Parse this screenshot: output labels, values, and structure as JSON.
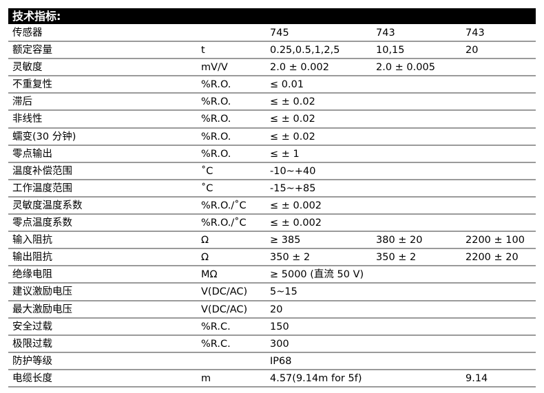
{
  "title": "技术指标:",
  "rows": [
    [
      "传感器",
      "",
      "745",
      "743",
      "743"
    ],
    [
      "额定容量",
      "t",
      "0.25,0.5,1,2,5",
      "10,15",
      "20"
    ],
    [
      "灵敏度",
      "mV/V",
      "2.0 ± 0.002",
      "2.0 ± 0.005",
      ""
    ],
    [
      "不重复性",
      "%R.O.",
      "≤ 0.01",
      "",
      ""
    ],
    [
      "滞后",
      "%R.O.",
      "≤ ± 0.02",
      "",
      ""
    ],
    [
      "非线性",
      "%R.O.",
      "≤ ± 0.02",
      "",
      ""
    ],
    [
      "蠕变(30 分钟)",
      "%R.O.",
      "≤ ± 0.02",
      "",
      ""
    ],
    [
      "零点输出",
      "%R.O.",
      "≤ ± 1",
      "",
      ""
    ],
    [
      "温度补偿范围",
      "˚C",
      "-10~+40",
      "",
      ""
    ],
    [
      "工作温度范围",
      "˚C",
      "-15~+85",
      "",
      ""
    ],
    [
      "灵敏度温度系数",
      "%R.O./˚C",
      "≤ ± 0.002",
      "",
      ""
    ],
    [
      "零点温度系数",
      "%R.O./˚C",
      "≤ ± 0.002",
      "",
      ""
    ],
    [
      "输入阻抗",
      "Ω",
      "≥ 385",
      "380 ± 20",
      "2200 ± 100"
    ],
    [
      "输出阻抗",
      "Ω",
      "350 ± 2",
      "350 ± 2",
      "2200 ± 20"
    ],
    [
      "绝缘电阻",
      "MΩ",
      "≥ 5000 (直流 50 V)",
      "",
      ""
    ],
    [
      "建议激励电压",
      "V(DC/AC)",
      "5~15",
      "",
      ""
    ],
    [
      "最大激励电压",
      "V(DC/AC)",
      "20",
      "",
      ""
    ],
    [
      "安全过载",
      "%R.C.",
      "150",
      "",
      ""
    ],
    [
      "极限过载",
      "%R.C.",
      "300",
      "",
      ""
    ],
    [
      "防护等级",
      "",
      "IP68",
      "",
      ""
    ],
    [
      "电缆长度",
      "m",
      "4.57(9.14m for 5f)",
      "",
      "9.14"
    ]
  ]
}
